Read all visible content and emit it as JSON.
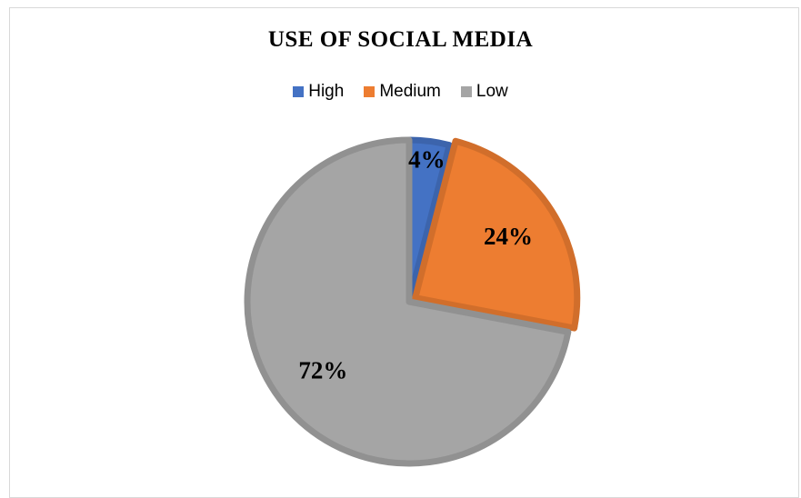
{
  "chart_data": {
    "type": "pie",
    "title": "USE OF SOCIAL MEDIA",
    "legend_position": "top",
    "categories": [
      "High",
      "Medium",
      "Low"
    ],
    "values": [
      4,
      24,
      72
    ],
    "labels": [
      "4%",
      "24%",
      "72%"
    ],
    "colors": [
      "#4472c4",
      "#ed7d31",
      "#a5a5a5"
    ],
    "exploded": "Medium"
  }
}
